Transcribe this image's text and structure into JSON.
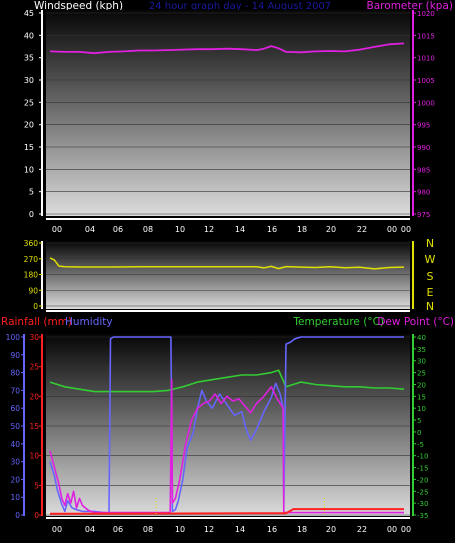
{
  "top_panel": {
    "left_label": "Windspeed (kph)",
    "title": "24 hour graph day - 14 August 2007",
    "right_label": "Barometer (kpa)"
  },
  "bottom_panel": {
    "rainfall_label": "Rainfall (mm)",
    "humidity_label": "Humidity",
    "temperature_label": "Temperature (°C)",
    "dewpoint_label": "Dew Point (°C)"
  },
  "x_ticks": [
    "00",
    "04",
    "06",
    "08",
    "10",
    "12",
    "14",
    "16",
    "18",
    "20",
    "22",
    "00",
    "00"
  ],
  "compass": [
    "N",
    "W",
    "S",
    "E",
    "N"
  ],
  "colors": {
    "wind": "#ffffff",
    "barometer": "#e020e0",
    "direction": "#e0e000",
    "rain": "#ff2020",
    "humidity": "#6666ff",
    "temperature": "#33cc33",
    "dewpoint": "#e020e0",
    "title": "#1a1aa0"
  },
  "chart_data": [
    {
      "type": "line",
      "name": "wind-barometer",
      "y_left": {
        "label": "Windspeed (kph)",
        "range": [
          0,
          45
        ],
        "ticks": [
          0,
          5,
          10,
          15,
          20,
          25,
          30,
          35,
          40,
          45
        ]
      },
      "y_right": {
        "label": "Barometer (kpa)",
        "range": [
          975,
          1020
        ],
        "ticks": [
          975,
          980,
          985,
          990,
          995,
          1000,
          1005,
          1010,
          1015,
          1020
        ]
      },
      "series": [
        {
          "name": "Barometer (kpa)",
          "axis": "right",
          "x": [
            0,
            1,
            2,
            3,
            4,
            5,
            6,
            7,
            8,
            9,
            10,
            11,
            12,
            13,
            14,
            14.5,
            15,
            15.5,
            16,
            17,
            18,
            19,
            20,
            21,
            22,
            23,
            24
          ],
          "values": [
            1011.4,
            1011.3,
            1011.3,
            1011,
            1011.3,
            1011.4,
            1011.6,
            1011.6,
            1011.7,
            1011.8,
            1011.9,
            1011.9,
            1012,
            1011.9,
            1011.7,
            1012,
            1012.6,
            1012.1,
            1011.3,
            1011.2,
            1011.4,
            1011.5,
            1011.4,
            1011.8,
            1012.4,
            1013,
            1013.2
          ]
        }
      ]
    },
    {
      "type": "line",
      "name": "wind-direction",
      "y": {
        "range": [
          0,
          360
        ],
        "ticks": [
          0,
          90,
          180,
          270,
          360
        ]
      },
      "series": [
        {
          "name": "Wind direction",
          "x": [
            0,
            0.3,
            0.6,
            1,
            2,
            4,
            6,
            8,
            10,
            12,
            14,
            14.5,
            15,
            15.5,
            16,
            17,
            18,
            19,
            20,
            21,
            22,
            23,
            24
          ],
          "values": [
            275,
            262,
            228,
            224,
            223,
            223,
            224,
            224,
            224,
            224,
            224,
            218,
            226,
            214,
            225,
            222,
            220,
            224,
            219,
            221,
            212,
            220,
            222
          ]
        }
      ]
    },
    {
      "type": "line",
      "name": "rain-humidity-temperature",
      "y_left_rain": {
        "label": "Rainfall (mm)",
        "range": [
          0,
          30
        ],
        "ticks": [
          0,
          5,
          10,
          15,
          20,
          25,
          30
        ]
      },
      "y_left_humidity": {
        "label": "Humidity",
        "range": [
          0,
          100
        ],
        "ticks": [
          0,
          10,
          20,
          30,
          40,
          50,
          60,
          70,
          80,
          90,
          100
        ]
      },
      "y_right": {
        "label": "Temperature (°C)",
        "range": [
          -35,
          40
        ],
        "ticks": [
          -35,
          -30,
          -25,
          -20,
          -15,
          -10,
          -5,
          0,
          5,
          10,
          15,
          20,
          25,
          30,
          35,
          40
        ]
      },
      "series": [
        {
          "name": "Rainfall (mm)",
          "axis": "rain",
          "x": [
            0,
            16,
            16.5,
            24
          ],
          "values": [
            0.2,
            0.3,
            1,
            1
          ]
        },
        {
          "name": "Humidity",
          "axis": "humidity",
          "x": [
            0,
            0.3,
            0.5,
            0.8,
            1,
            1.2,
            1.5,
            1.8,
            2.2,
            3,
            4,
            4.1,
            4.3,
            6,
            8,
            8.2,
            8.3,
            8.5,
            8.7,
            9,
            9.3,
            9.7,
            10,
            10.3,
            10.6,
            11,
            11.5,
            12,
            12.5,
            13,
            13.3,
            13.6,
            14,
            14.5,
            15,
            15.3,
            15.6,
            15.8,
            15.85,
            16,
            16.3,
            16.6,
            17,
            20,
            22,
            24
          ],
          "values": [
            30,
            22,
            14,
            6,
            2,
            8,
            4,
            3,
            2,
            2,
            1,
            99,
            100,
            100,
            100,
            100,
            2,
            3,
            8,
            20,
            38,
            46,
            60,
            70,
            64,
            60,
            68,
            62,
            56,
            58,
            48,
            42,
            48,
            58,
            66,
            74,
            68,
            60,
            5,
            96,
            97,
            99,
            100,
            100,
            100,
            100
          ]
        },
        {
          "name": "Temperature (°C)",
          "axis": "right",
          "x": [
            0,
            0.5,
            1,
            2,
            3,
            4,
            5,
            6,
            7,
            8,
            9,
            9.5,
            10,
            11,
            12,
            13,
            14,
            15,
            15.5,
            16,
            17,
            18,
            19,
            20,
            21,
            22,
            23,
            24
          ],
          "values": [
            21,
            20,
            19,
            18,
            17,
            17,
            17,
            17,
            17,
            17.5,
            19,
            20,
            21,
            22,
            23,
            24,
            24,
            25,
            26,
            19,
            21,
            20,
            19.5,
            19,
            19,
            18.5,
            18.5,
            18
          ]
        },
        {
          "name": "Dew Point (°C)",
          "axis": "right",
          "x": [
            0,
            0.3,
            0.6,
            0.8,
            1,
            1.2,
            1.4,
            1.6,
            1.8,
            2,
            2.2,
            2.6,
            3,
            3.5,
            4,
            4.1,
            6,
            8,
            8.15,
            8.25,
            8.3,
            8.5,
            8.8,
            9.2,
            9.6,
            10,
            10.4,
            10.8,
            11.2,
            11.6,
            12,
            12.4,
            12.8,
            13.2,
            13.6,
            14,
            14.5,
            15,
            15.4,
            15.8,
            15.85,
            16,
            16.5,
            24
          ],
          "values": [
            -8,
            -15,
            -22,
            -28,
            -31,
            -26,
            -30,
            -25,
            -32,
            -28,
            -31,
            -33,
            -34,
            -34,
            -34,
            -34,
            -34,
            -34,
            -34,
            22,
            -30,
            -28,
            -20,
            -5,
            5,
            10,
            12,
            13,
            16,
            12,
            15,
            13,
            14,
            11,
            8,
            12,
            15,
            19,
            14,
            10,
            -34,
            -34,
            -34,
            -34
          ]
        }
      ]
    }
  ]
}
